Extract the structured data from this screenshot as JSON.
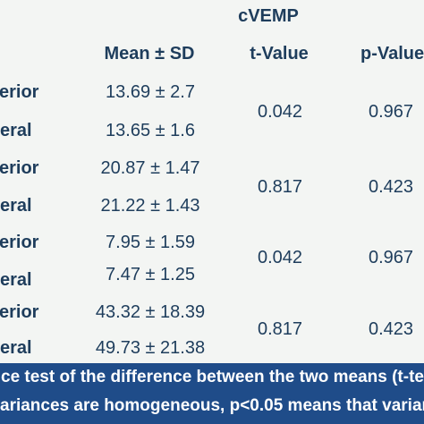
{
  "table": {
    "group_header": "cVEMP",
    "columns": {
      "mean_sd": "Mean ± SD",
      "t_value": "t-Value",
      "p_value": "p-Value"
    },
    "rows": [
      {
        "label": "erior",
        "mean_sd": "13.69 ± 2.7"
      },
      {
        "label": "eral",
        "mean_sd": "13.65 ± 1.6"
      },
      {
        "label": "erior",
        "mean_sd": "20.87 ± 1.47"
      },
      {
        "label": "eral",
        "mean_sd": "21.22 ± 1.43"
      },
      {
        "label": "erior",
        "mean_sd": "7.95 ± 1.59"
      },
      {
        "label": "eral",
        "mean_sd": "7.47 ± 1.25"
      },
      {
        "label": "erior",
        "mean_sd": "43.32 ± 18.39"
      },
      {
        "label": "eral",
        "mean_sd": "49.73 ± 21.38"
      }
    ],
    "pairs": [
      {
        "t_value": "0.042",
        "p_value": "0.967"
      },
      {
        "t_value": "0.817",
        "p_value": "0.423"
      },
      {
        "t_value": "0.042",
        "p_value": "0.967"
      },
      {
        "t_value": "0.817",
        "p_value": "0.423"
      }
    ]
  },
  "caption": {
    "line1": "ce test of the difference between the two means (t-te",
    "line2": "ariances are homogeneous, p<0.05 means that varian"
  },
  "colors": {
    "text": "#1e3d5c",
    "caption_background": "#1f4c89",
    "caption_text": "#ffffff",
    "page_background": "#f3f5f3"
  }
}
